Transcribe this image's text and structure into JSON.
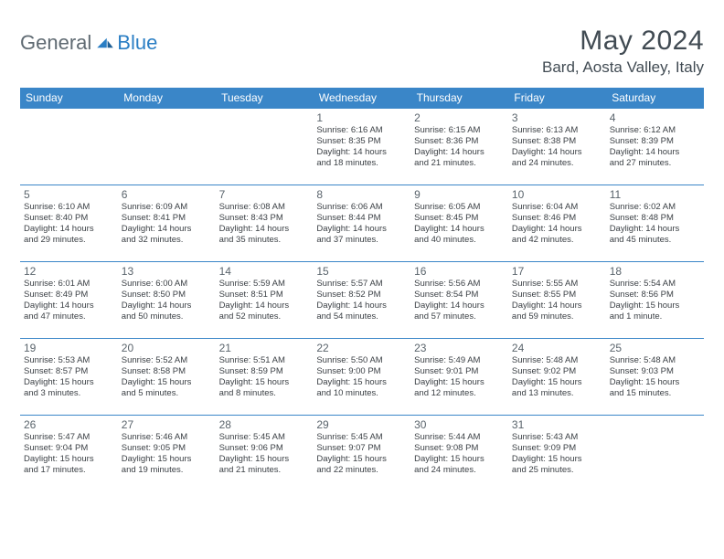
{
  "brand": {
    "part1": "General",
    "part2": "Blue"
  },
  "title": "May 2024",
  "location": "Bard, Aosta Valley, Italy",
  "colors": {
    "header_bg": "#3a86c8",
    "header_text": "#ffffff",
    "border": "#3a86c8",
    "title_color": "#414b53",
    "daynum_color": "#5a646c",
    "text_color": "#3a3f44",
    "brand_gray": "#5f6a72",
    "brand_blue": "#2a7ec4",
    "background": "#ffffff"
  },
  "typography": {
    "title_fontsize": 30,
    "location_fontsize": 17,
    "header_fontsize": 12,
    "daynum_fontsize": 12,
    "body_fontsize": 9.5
  },
  "weekdays": [
    "Sunday",
    "Monday",
    "Tuesday",
    "Wednesday",
    "Thursday",
    "Friday",
    "Saturday"
  ],
  "weeks": [
    [
      null,
      null,
      null,
      {
        "n": "1",
        "sr": "6:16 AM",
        "ss": "8:35 PM",
        "dl": "14 hours and 18 minutes."
      },
      {
        "n": "2",
        "sr": "6:15 AM",
        "ss": "8:36 PM",
        "dl": "14 hours and 21 minutes."
      },
      {
        "n": "3",
        "sr": "6:13 AM",
        "ss": "8:38 PM",
        "dl": "14 hours and 24 minutes."
      },
      {
        "n": "4",
        "sr": "6:12 AM",
        "ss": "8:39 PM",
        "dl": "14 hours and 27 minutes."
      }
    ],
    [
      {
        "n": "5",
        "sr": "6:10 AM",
        "ss": "8:40 PM",
        "dl": "14 hours and 29 minutes."
      },
      {
        "n": "6",
        "sr": "6:09 AM",
        "ss": "8:41 PM",
        "dl": "14 hours and 32 minutes."
      },
      {
        "n": "7",
        "sr": "6:08 AM",
        "ss": "8:43 PM",
        "dl": "14 hours and 35 minutes."
      },
      {
        "n": "8",
        "sr": "6:06 AM",
        "ss": "8:44 PM",
        "dl": "14 hours and 37 minutes."
      },
      {
        "n": "9",
        "sr": "6:05 AM",
        "ss": "8:45 PM",
        "dl": "14 hours and 40 minutes."
      },
      {
        "n": "10",
        "sr": "6:04 AM",
        "ss": "8:46 PM",
        "dl": "14 hours and 42 minutes."
      },
      {
        "n": "11",
        "sr": "6:02 AM",
        "ss": "8:48 PM",
        "dl": "14 hours and 45 minutes."
      }
    ],
    [
      {
        "n": "12",
        "sr": "6:01 AM",
        "ss": "8:49 PM",
        "dl": "14 hours and 47 minutes."
      },
      {
        "n": "13",
        "sr": "6:00 AM",
        "ss": "8:50 PM",
        "dl": "14 hours and 50 minutes."
      },
      {
        "n": "14",
        "sr": "5:59 AM",
        "ss": "8:51 PM",
        "dl": "14 hours and 52 minutes."
      },
      {
        "n": "15",
        "sr": "5:57 AM",
        "ss": "8:52 PM",
        "dl": "14 hours and 54 minutes."
      },
      {
        "n": "16",
        "sr": "5:56 AM",
        "ss": "8:54 PM",
        "dl": "14 hours and 57 minutes."
      },
      {
        "n": "17",
        "sr": "5:55 AM",
        "ss": "8:55 PM",
        "dl": "14 hours and 59 minutes."
      },
      {
        "n": "18",
        "sr": "5:54 AM",
        "ss": "8:56 PM",
        "dl": "15 hours and 1 minute."
      }
    ],
    [
      {
        "n": "19",
        "sr": "5:53 AM",
        "ss": "8:57 PM",
        "dl": "15 hours and 3 minutes."
      },
      {
        "n": "20",
        "sr": "5:52 AM",
        "ss": "8:58 PM",
        "dl": "15 hours and 5 minutes."
      },
      {
        "n": "21",
        "sr": "5:51 AM",
        "ss": "8:59 PM",
        "dl": "15 hours and 8 minutes."
      },
      {
        "n": "22",
        "sr": "5:50 AM",
        "ss": "9:00 PM",
        "dl": "15 hours and 10 minutes."
      },
      {
        "n": "23",
        "sr": "5:49 AM",
        "ss": "9:01 PM",
        "dl": "15 hours and 12 minutes."
      },
      {
        "n": "24",
        "sr": "5:48 AM",
        "ss": "9:02 PM",
        "dl": "15 hours and 13 minutes."
      },
      {
        "n": "25",
        "sr": "5:48 AM",
        "ss": "9:03 PM",
        "dl": "15 hours and 15 minutes."
      }
    ],
    [
      {
        "n": "26",
        "sr": "5:47 AM",
        "ss": "9:04 PM",
        "dl": "15 hours and 17 minutes."
      },
      {
        "n": "27",
        "sr": "5:46 AM",
        "ss": "9:05 PM",
        "dl": "15 hours and 19 minutes."
      },
      {
        "n": "28",
        "sr": "5:45 AM",
        "ss": "9:06 PM",
        "dl": "15 hours and 21 minutes."
      },
      {
        "n": "29",
        "sr": "5:45 AM",
        "ss": "9:07 PM",
        "dl": "15 hours and 22 minutes."
      },
      {
        "n": "30",
        "sr": "5:44 AM",
        "ss": "9:08 PM",
        "dl": "15 hours and 24 minutes."
      },
      {
        "n": "31",
        "sr": "5:43 AM",
        "ss": "9:09 PM",
        "dl": "15 hours and 25 minutes."
      },
      null
    ]
  ],
  "labels": {
    "sunrise": "Sunrise:",
    "sunset": "Sunset:",
    "daylight": "Daylight:"
  }
}
